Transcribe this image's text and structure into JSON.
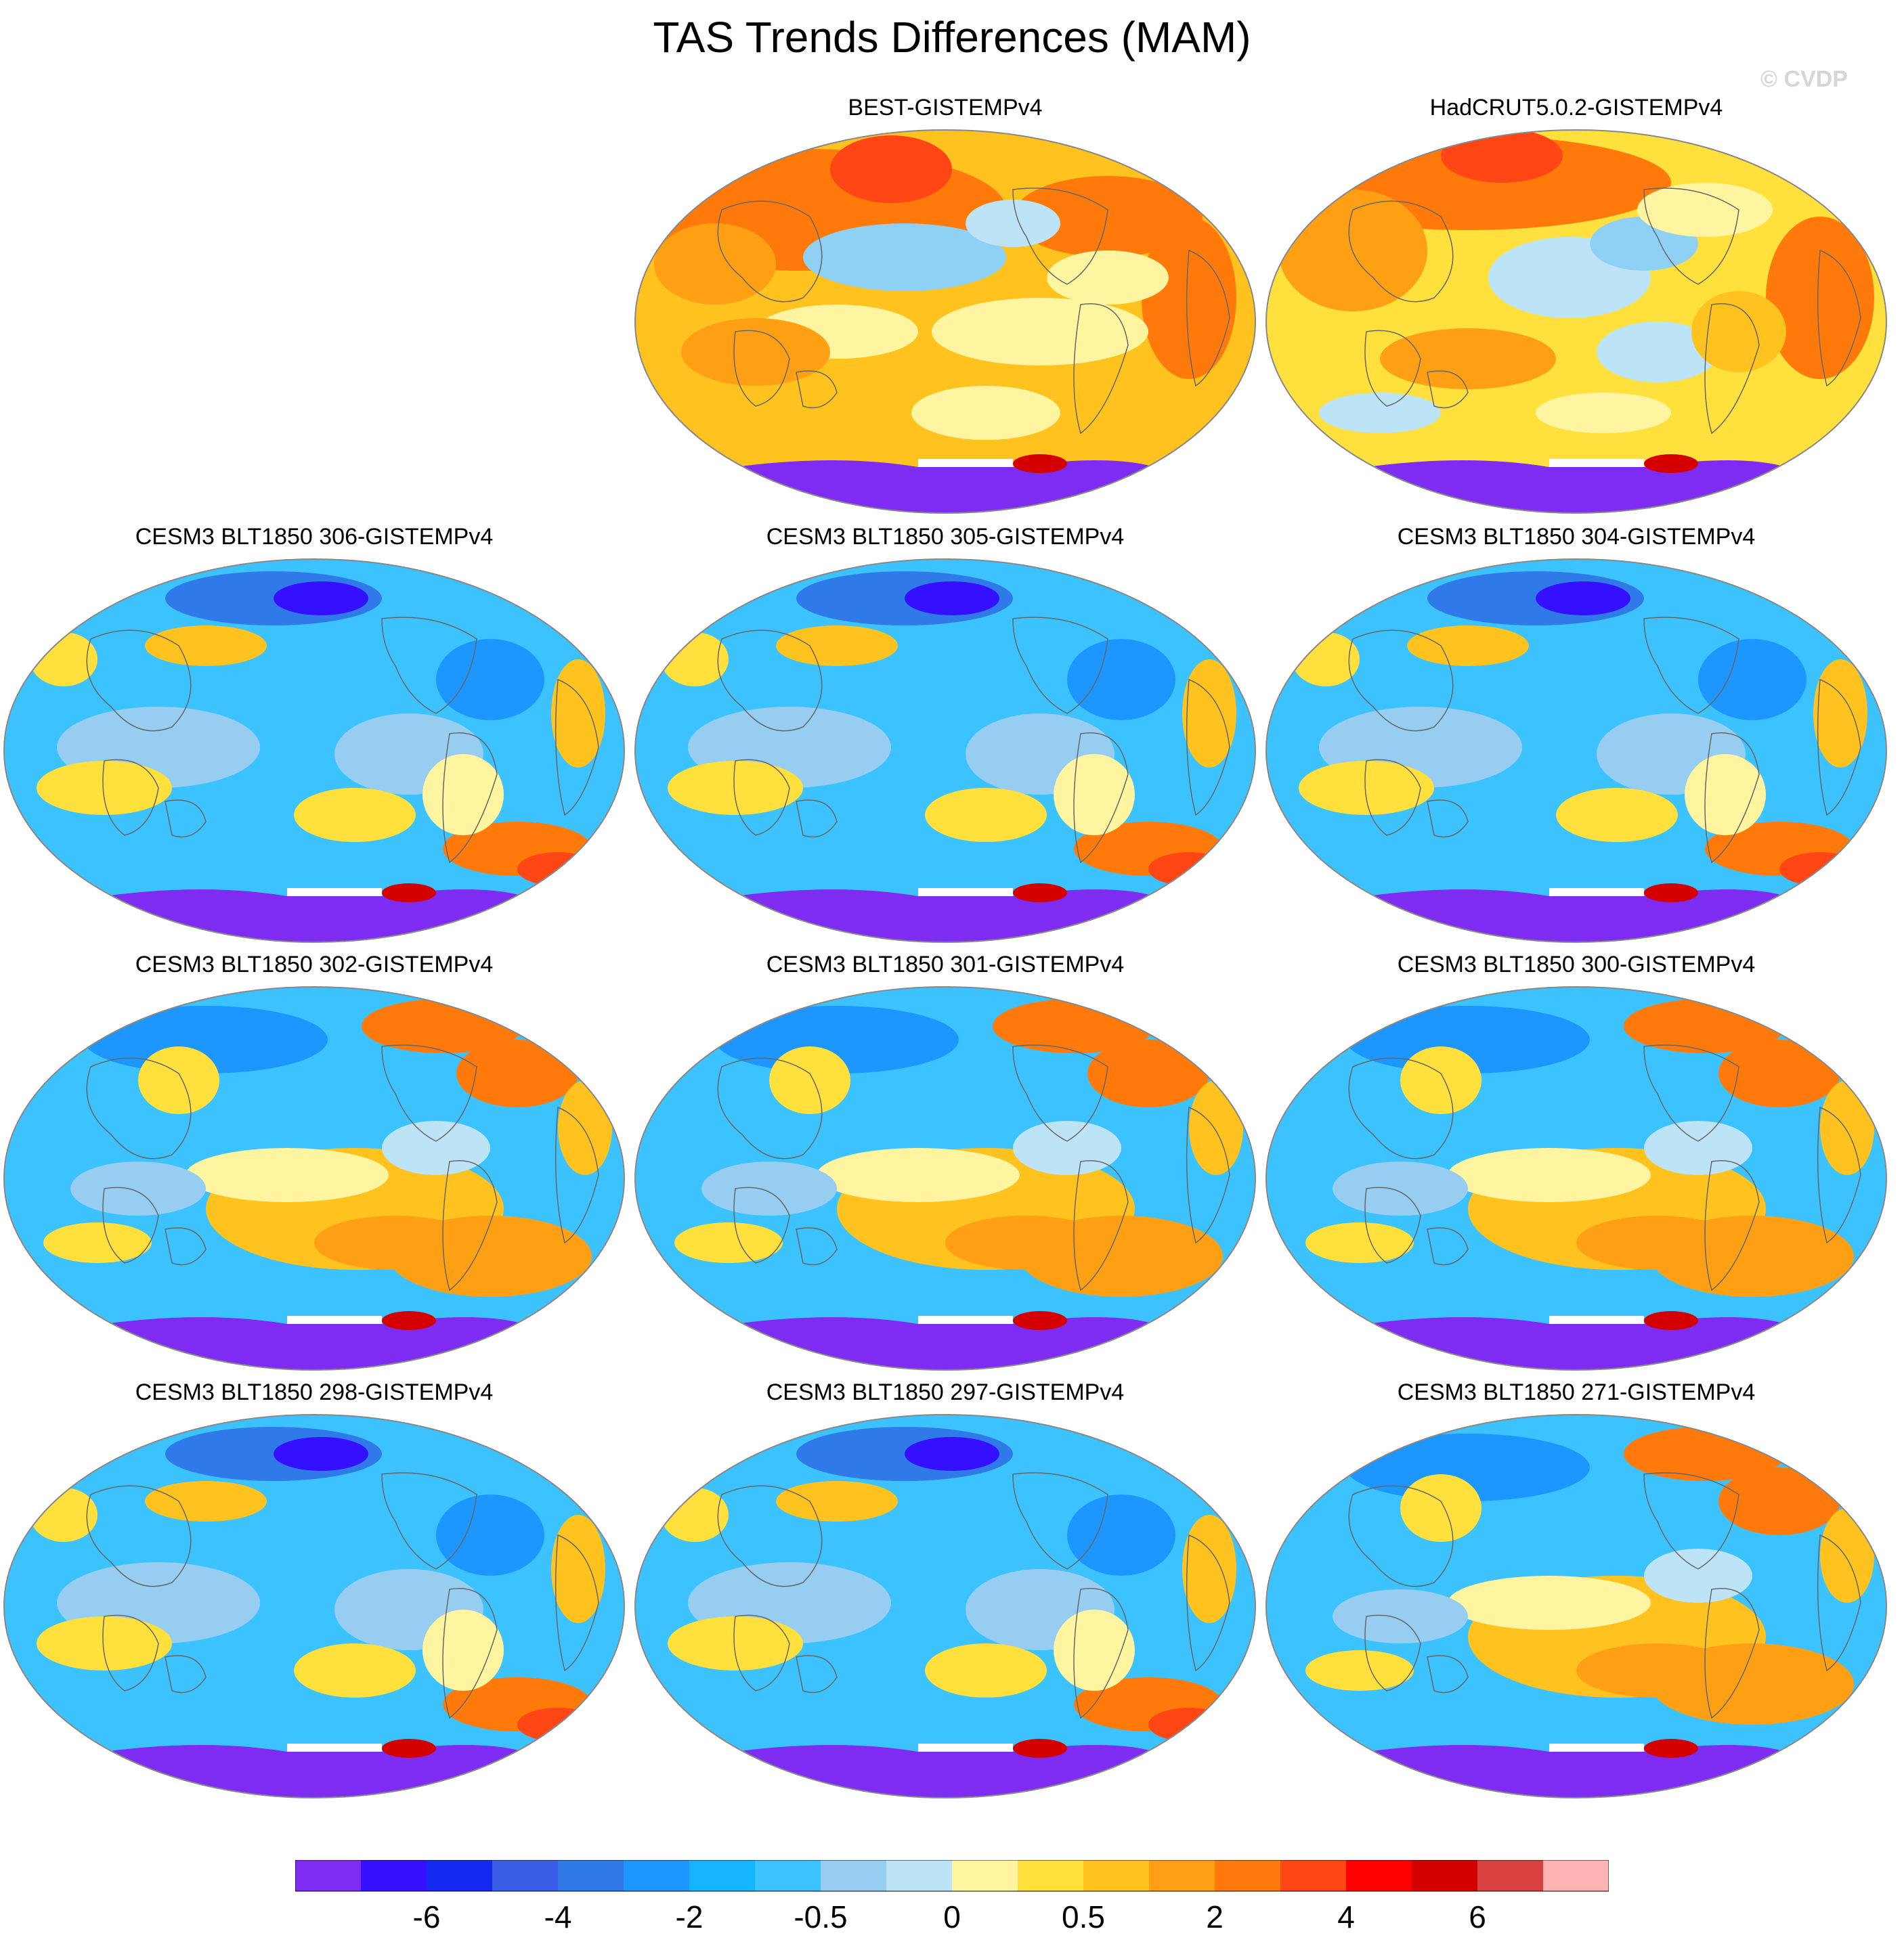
{
  "title": "TAS Trends Differences (MAM)",
  "watermark": "© CVDP",
  "palette": {
    "antarctica": "#7e2cf2",
    "ocean": "#19b6ff",
    "coastline": "#666666",
    "map_outline": "#888888"
  },
  "panels": [
    {
      "title": "BEST-GISTEMPv4",
      "scheme": "warm"
    },
    {
      "title": "HadCRUT5.0.2-GISTEMPv4",
      "scheme": "warm2"
    },
    {
      "title": "CESM3 BLT1850 306-GISTEMPv4",
      "scheme": "cool"
    },
    {
      "title": "CESM3 BLT1850 305-GISTEMPv4",
      "scheme": "cool"
    },
    {
      "title": "CESM3 BLT1850 304-GISTEMPv4",
      "scheme": "cool"
    },
    {
      "title": "CESM3 BLT1850 302-GISTEMPv4",
      "scheme": "mixed"
    },
    {
      "title": "CESM3 BLT1850 301-GISTEMPv4",
      "scheme": "mixed"
    },
    {
      "title": "CESM3 BLT1850 300-GISTEMPv4",
      "scheme": "mixed"
    },
    {
      "title": "CESM3 BLT1850 298-GISTEMPv4",
      "scheme": "cool"
    },
    {
      "title": "CESM3 BLT1850 297-GISTEMPv4",
      "scheme": "cool"
    },
    {
      "title": "CESM3 BLT1850 271-GISTEMPv4",
      "scheme": "mixed"
    }
  ],
  "colorbar": {
    "colors": [
      "#7e2cf2",
      "#3410ff",
      "#1428f0",
      "#3a5ee8",
      "#2f7ae8",
      "#1e96ff",
      "#14b4ff",
      "#3cc2ff",
      "#96cdf0",
      "#bde3f7",
      "#fff5a0",
      "#ffe03c",
      "#ffc21e",
      "#ffa014",
      "#ff7a0a",
      "#ff4614",
      "#ff0000",
      "#d40000",
      "#d94040",
      "#ffb4b4"
    ],
    "labels": [
      {
        "after": 1,
        "text": "-6"
      },
      {
        "after": 3,
        "text": "-4"
      },
      {
        "after": 5,
        "text": "-2"
      },
      {
        "after": 7,
        "text": "-0.5"
      },
      {
        "after": 9,
        "text": "0"
      },
      {
        "after": 11,
        "text": "0.5"
      },
      {
        "after": 13,
        "text": "2"
      },
      {
        "after": 15,
        "text": "4"
      },
      {
        "after": 17,
        "text": "6"
      }
    ]
  }
}
